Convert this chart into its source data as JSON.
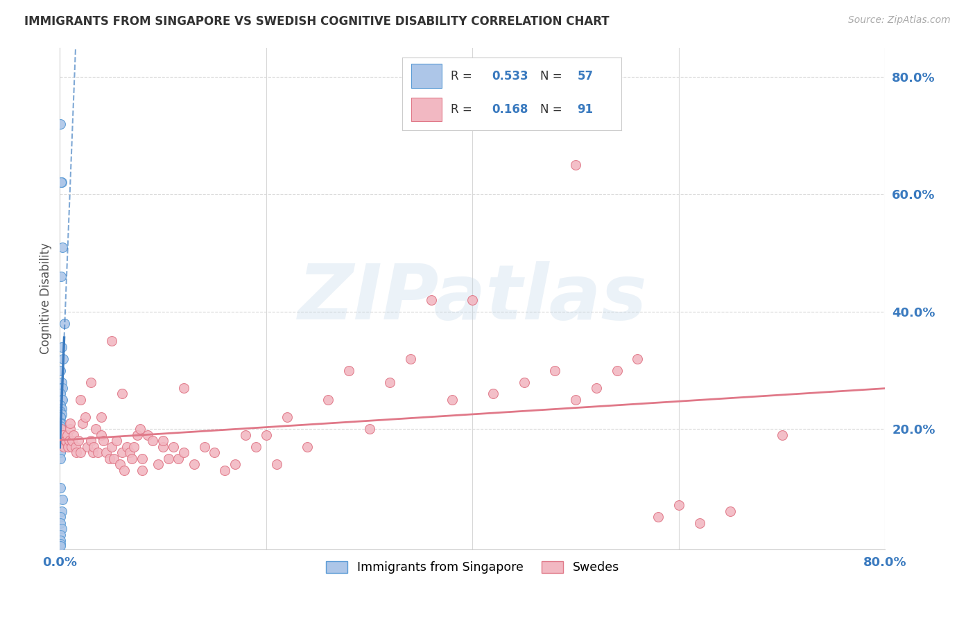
{
  "title": "IMMIGRANTS FROM SINGAPORE VS SWEDISH COGNITIVE DISABILITY CORRELATION CHART",
  "source": "Source: ZipAtlas.com",
  "ylabel": "Cognitive Disability",
  "blue_R": "0.533",
  "blue_N": "57",
  "pink_R": "0.168",
  "pink_N": "91",
  "blue_fill_color": "#adc6e8",
  "blue_edge_color": "#5b9bd5",
  "blue_line_color": "#3a7abf",
  "pink_fill_color": "#f2b8c2",
  "pink_edge_color": "#e07888",
  "pink_line_color": "#e07888",
  "right_axis_color": "#3a7abf",
  "watermark": "ZIPatlas",
  "xlim": [
    0.0,
    0.8
  ],
  "ylim": [
    -0.005,
    0.85
  ],
  "xtick_labels": [
    "0.0%",
    "",
    "",
    "",
    "80.0%"
  ],
  "xtick_values": [
    0.0,
    0.2,
    0.4,
    0.6,
    0.8
  ],
  "ytick_values": [
    0.0,
    0.2,
    0.4,
    0.6,
    0.8
  ],
  "ytick_labels": [
    "",
    "20.0%",
    "40.0%",
    "60.0%",
    "80.0%"
  ],
  "grid_color": "#d8d8d8",
  "bg_color": "#ffffff",
  "blue_x": [
    0.0008,
    0.0015,
    0.001,
    0.0025,
    0.001,
    0.0042,
    0.002,
    0.0035,
    0.0008,
    0.0015,
    0.0008,
    0.0028,
    0.0008,
    0.0018,
    0.0025,
    0.0008,
    0.0008,
    0.0015,
    0.0008,
    0.0015,
    0.0008,
    0.0008,
    0.0008,
    0.0015,
    0.0008,
    0.0008,
    0.0008,
    0.0008,
    0.0008,
    0.0008,
    0.0008,
    0.0008,
    0.0008,
    0.0008,
    0.0008,
    0.0015,
    0.0008,
    0.0008,
    0.0008,
    0.0008,
    0.0008,
    0.0008,
    0.0008,
    0.0008,
    0.0008,
    0.0008,
    0.0008,
    0.0008,
    0.0028,
    0.0018,
    0.0008,
    0.0008,
    0.0018,
    0.0008,
    0.0008,
    0.0008,
    0.0008
  ],
  "blue_y": [
    0.72,
    0.62,
    0.62,
    0.51,
    0.46,
    0.38,
    0.34,
    0.32,
    0.3,
    0.28,
    0.27,
    0.27,
    0.26,
    0.25,
    0.25,
    0.24,
    0.24,
    0.235,
    0.23,
    0.225,
    0.22,
    0.22,
    0.22,
    0.21,
    0.21,
    0.21,
    0.21,
    0.205,
    0.2,
    0.2,
    0.2,
    0.2,
    0.2,
    0.195,
    0.19,
    0.19,
    0.19,
    0.19,
    0.19,
    0.185,
    0.18,
    0.18,
    0.18,
    0.17,
    0.17,
    0.16,
    0.15,
    0.1,
    0.08,
    0.06,
    0.05,
    0.04,
    0.03,
    0.02,
    0.01,
    0.005,
    0.001
  ],
  "pink_x": [
    0.001,
    0.002,
    0.003,
    0.004,
    0.005,
    0.006,
    0.007,
    0.008,
    0.009,
    0.01,
    0.011,
    0.012,
    0.013,
    0.015,
    0.016,
    0.018,
    0.02,
    0.022,
    0.025,
    0.027,
    0.03,
    0.032,
    0.033,
    0.035,
    0.037,
    0.04,
    0.042,
    0.045,
    0.048,
    0.05,
    0.052,
    0.055,
    0.058,
    0.06,
    0.062,
    0.065,
    0.068,
    0.07,
    0.072,
    0.075,
    0.078,
    0.08,
    0.085,
    0.09,
    0.095,
    0.1,
    0.105,
    0.11,
    0.115,
    0.12,
    0.13,
    0.14,
    0.15,
    0.16,
    0.17,
    0.18,
    0.19,
    0.2,
    0.21,
    0.22,
    0.24,
    0.26,
    0.28,
    0.3,
    0.32,
    0.34,
    0.36,
    0.38,
    0.4,
    0.42,
    0.45,
    0.48,
    0.5,
    0.52,
    0.54,
    0.56,
    0.58,
    0.6,
    0.62,
    0.65,
    0.01,
    0.02,
    0.03,
    0.04,
    0.05,
    0.06,
    0.08,
    0.1,
    0.12,
    0.5,
    0.7
  ],
  "pink_y": [
    0.2,
    0.18,
    0.19,
    0.17,
    0.18,
    0.18,
    0.19,
    0.17,
    0.18,
    0.2,
    0.17,
    0.18,
    0.19,
    0.17,
    0.16,
    0.18,
    0.16,
    0.21,
    0.22,
    0.17,
    0.18,
    0.16,
    0.17,
    0.2,
    0.16,
    0.19,
    0.18,
    0.16,
    0.15,
    0.17,
    0.15,
    0.18,
    0.14,
    0.16,
    0.13,
    0.17,
    0.16,
    0.15,
    0.17,
    0.19,
    0.2,
    0.15,
    0.19,
    0.18,
    0.14,
    0.17,
    0.15,
    0.17,
    0.15,
    0.16,
    0.14,
    0.17,
    0.16,
    0.13,
    0.14,
    0.19,
    0.17,
    0.19,
    0.14,
    0.22,
    0.17,
    0.25,
    0.3,
    0.2,
    0.28,
    0.32,
    0.42,
    0.25,
    0.42,
    0.26,
    0.28,
    0.3,
    0.25,
    0.27,
    0.3,
    0.32,
    0.05,
    0.07,
    0.04,
    0.06,
    0.21,
    0.25,
    0.28,
    0.22,
    0.35,
    0.26,
    0.13,
    0.18,
    0.27,
    0.65,
    0.19
  ],
  "legend_R_text_color": "#333333",
  "legend_val_color": "#3a7abf",
  "scatter_size": 100
}
